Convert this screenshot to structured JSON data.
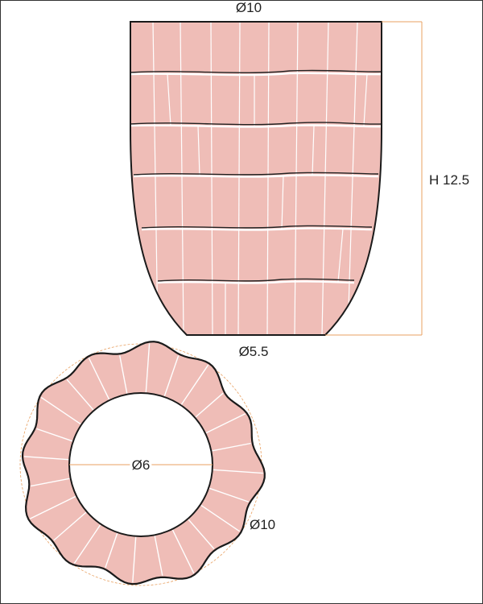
{
  "colors": {
    "fill": "#EFBDB7",
    "outline": "#1a1a1a",
    "dimension_line": "#E8A060",
    "groove": "#ffffff"
  },
  "side_view": {
    "top_diameter_label": "Ø10",
    "bottom_diameter_label": "Ø5.5",
    "height_label": "H 12.5"
  },
  "top_view": {
    "inner_diameter_label": "Ø6",
    "outer_diameter_label": "Ø10"
  }
}
